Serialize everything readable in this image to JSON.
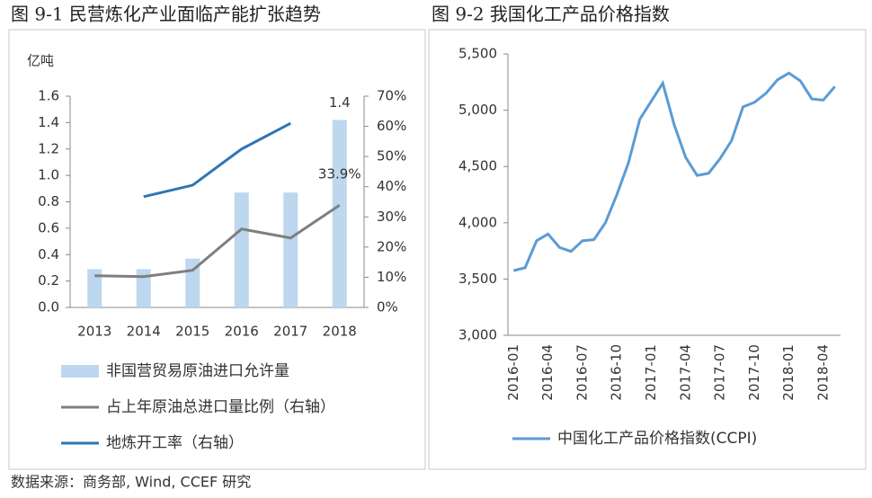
{
  "chart_data": [
    {
      "type": "combo",
      "title": "图 9-1  民营炼化产业面临产能扩张趋势",
      "ylabel": "亿吨",
      "categories": [
        "2013",
        "2014",
        "2015",
        "2016",
        "2017",
        "2018"
      ],
      "ylim": [
        0,
        1.6
      ],
      "yticks": [
        {
          "value": 0,
          "label": "0.0"
        },
        0.2,
        0.4,
        0.6,
        0.8,
        {
          "value": 1,
          "label": "1.0"
        },
        1.2,
        1.4,
        1.6
      ],
      "y2lim": [
        0,
        70
      ],
      "y2ticks": [
        {
          "value": 0,
          "label": "0%"
        },
        {
          "value": 10,
          "label": "10%"
        },
        {
          "value": 20,
          "label": "20%"
        },
        {
          "value": 30,
          "label": "30%"
        },
        {
          "value": 40,
          "label": "40%"
        },
        {
          "value": 50,
          "label": "50%"
        },
        {
          "value": 60,
          "label": "60%"
        },
        {
          "value": 70,
          "label": "70%"
        }
      ],
      "legend": "bottom",
      "series": [
        {
          "name": "非国营贸易原油进口允许量",
          "type": "bar",
          "color": "#bdd7ee",
          "values": [
            0.29,
            0.29,
            0.37,
            0.87,
            0.87,
            1.42
          ],
          "value_labels": [
            null,
            null,
            null,
            null,
            null,
            "1.4"
          ]
        },
        {
          "name": "占上年原油总进口量比例（右轴）",
          "type": "line",
          "axis": "y2",
          "color": "#7f7f7f",
          "values": [
            10.5,
            10.2,
            12.3,
            26,
            23,
            33.9
          ],
          "value_labels": [
            null,
            null,
            null,
            null,
            null,
            "33.9%"
          ]
        },
        {
          "name": "地炼开工率（右轴）",
          "type": "line",
          "axis": "y2",
          "color": "#2e75b6",
          "values": [
            null,
            36.7,
            40.5,
            52.5,
            61,
            null
          ]
        }
      ]
    },
    {
      "type": "line",
      "title": "图 9-2  我国化工产品价格指数",
      "categories": [
        "2016-01",
        null,
        null,
        "2016-04",
        null,
        null,
        "2016-07",
        null,
        null,
        "2016-10",
        null,
        null,
        "2017-01",
        null,
        null,
        "2017-04",
        null,
        null,
        "2017-07",
        null,
        null,
        "2017-10",
        null,
        null,
        "2018-01",
        null,
        null,
        "2018-04",
        null
      ],
      "ylim": [
        3000,
        5500
      ],
      "yticks": [
        {
          "value": 3000,
          "label": "3,000"
        },
        {
          "value": 3500,
          "label": "3,500"
        },
        {
          "value": 4000,
          "label": "4,000"
        },
        {
          "value": 4500,
          "label": "4,500"
        },
        {
          "value": 5000,
          "label": "5,000"
        },
        {
          "value": 5500,
          "label": "5,500"
        }
      ],
      "legend": "bottom",
      "series": [
        {
          "name": "中国化工产品价格指数(CCPI)",
          "color": "#5b9bd5",
          "values": [
            3575,
            3600,
            3840,
            3900,
            3780,
            3745,
            3840,
            3850,
            4000,
            4250,
            4530,
            4920,
            5080,
            5240,
            4870,
            4580,
            4420,
            4440,
            4570,
            4730,
            5030,
            5070,
            5150,
            5270,
            5330,
            5260,
            5100,
            5090,
            5210
          ]
        }
      ]
    }
  ],
  "source": "数据来源：商务部, Wind, CCEF 研究"
}
